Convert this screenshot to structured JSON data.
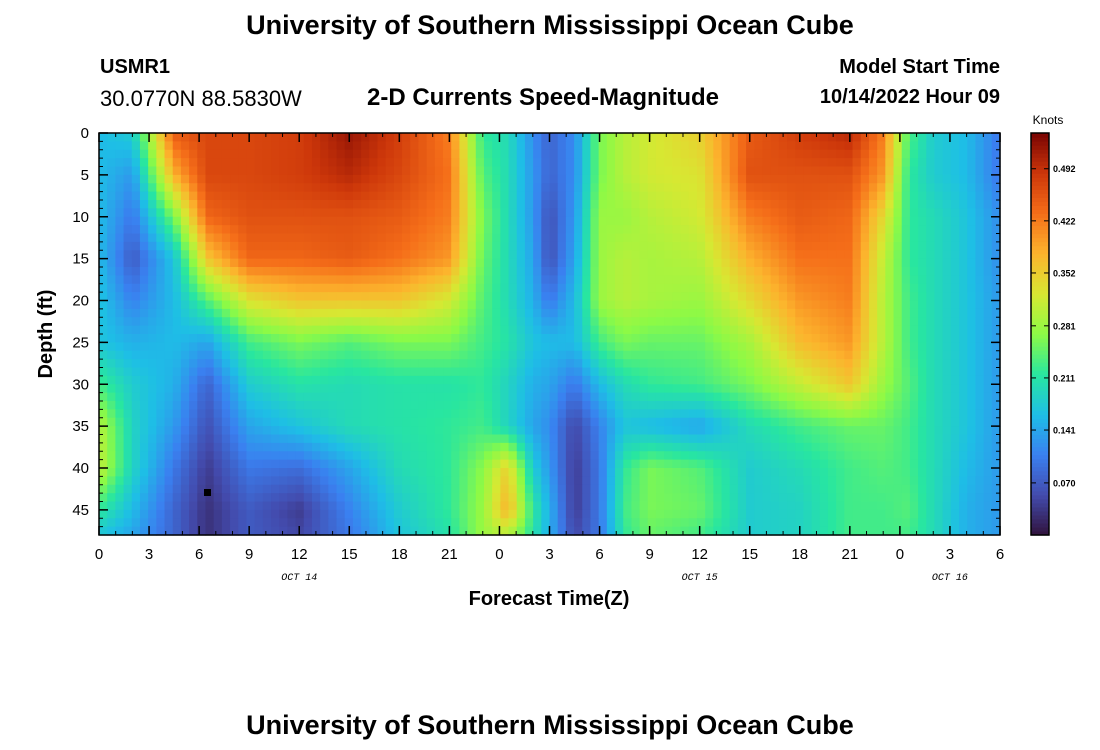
{
  "header": {
    "title": "University of Southern Mississippi Ocean Cube",
    "station": "USMR1",
    "coords": "30.0770N  88.5830W",
    "plot_title": "2-D Currents Speed-Magnitude",
    "model_start_label": "Model Start Time",
    "model_start_value": "10/14/2022 Hour 09"
  },
  "footer": {
    "title": "University of Southern Mississippi Ocean Cube"
  },
  "chart_data": {
    "type": "heatmap",
    "title": "2-D Currents Speed-Magnitude",
    "xlabel": "Forecast Time(Z)",
    "ylabel": "Depth (ft)",
    "xlim": [
      0,
      54
    ],
    "ylim": [
      48,
      0
    ],
    "x_tick_values": [
      0,
      3,
      6,
      9,
      12,
      15,
      18,
      21,
      24,
      27,
      30,
      33,
      36,
      39,
      42,
      45,
      48,
      51,
      54
    ],
    "x_tick_labels": [
      "0",
      "3",
      "6",
      "9",
      "12",
      "15",
      "18",
      "21",
      "0",
      "3",
      "6",
      "9",
      "12",
      "15",
      "18",
      "21",
      "0",
      "3",
      "6"
    ],
    "y_tick_values": [
      0,
      5,
      10,
      15,
      20,
      25,
      30,
      35,
      40,
      45
    ],
    "y_tick_labels": [
      "0",
      "5",
      "10",
      "15",
      "20",
      "25",
      "30",
      "35",
      "40",
      "45"
    ],
    "date_labels": [
      {
        "text": "OCT 14",
        "x": 12
      },
      {
        "text": "OCT 15",
        "x": 36
      },
      {
        "text": "OCT 16",
        "x": 51
      }
    ],
    "colorbar": {
      "label": "Knots",
      "min": 0,
      "max": 0.54,
      "tick_values": [
        0.07,
        0.141,
        0.211,
        0.281,
        0.352,
        0.422,
        0.492
      ],
      "tick_labels": [
        "0.070",
        "0.141",
        "0.211",
        "0.281",
        "0.352",
        "0.422",
        "0.492"
      ]
    },
    "time_axis_hours": [
      0,
      2,
      4.5,
      6.5,
      9,
      12,
      15,
      18,
      21,
      23,
      24.5,
      26,
      27,
      28.5,
      30,
      31.5,
      33,
      36,
      39,
      42,
      45,
      47,
      48.5,
      50,
      52,
      54
    ],
    "depth_axis_ft": [
      0,
      5,
      10,
      15,
      20,
      25,
      30,
      35,
      40,
      45,
      48
    ],
    "speed_knots": [
      [
        0.16,
        0.18,
        0.45,
        0.47,
        0.47,
        0.48,
        0.52,
        0.48,
        0.42,
        0.22,
        0.2,
        0.12,
        0.08,
        0.12,
        0.26,
        0.3,
        0.32,
        0.35,
        0.45,
        0.48,
        0.5,
        0.42,
        0.24,
        0.18,
        0.16,
        0.1
      ],
      [
        0.16,
        0.13,
        0.38,
        0.47,
        0.47,
        0.48,
        0.5,
        0.47,
        0.43,
        0.24,
        0.2,
        0.13,
        0.08,
        0.12,
        0.26,
        0.3,
        0.32,
        0.33,
        0.46,
        0.46,
        0.46,
        0.4,
        0.22,
        0.18,
        0.16,
        0.1
      ],
      [
        0.16,
        0.1,
        0.26,
        0.44,
        0.46,
        0.46,
        0.46,
        0.45,
        0.42,
        0.26,
        0.2,
        0.13,
        0.06,
        0.13,
        0.28,
        0.28,
        0.3,
        0.32,
        0.42,
        0.45,
        0.44,
        0.34,
        0.22,
        0.2,
        0.17,
        0.12
      ],
      [
        0.16,
        0.07,
        0.17,
        0.36,
        0.44,
        0.44,
        0.45,
        0.43,
        0.4,
        0.25,
        0.2,
        0.14,
        0.06,
        0.14,
        0.28,
        0.3,
        0.29,
        0.3,
        0.38,
        0.43,
        0.43,
        0.31,
        0.22,
        0.2,
        0.17,
        0.12
      ],
      [
        0.17,
        0.11,
        0.16,
        0.24,
        0.33,
        0.36,
        0.36,
        0.36,
        0.32,
        0.24,
        0.2,
        0.15,
        0.1,
        0.16,
        0.28,
        0.3,
        0.29,
        0.28,
        0.34,
        0.4,
        0.42,
        0.3,
        0.23,
        0.2,
        0.17,
        0.13
      ],
      [
        0.17,
        0.15,
        0.16,
        0.14,
        0.23,
        0.26,
        0.24,
        0.26,
        0.26,
        0.23,
        0.21,
        0.17,
        0.16,
        0.16,
        0.23,
        0.26,
        0.25,
        0.25,
        0.29,
        0.37,
        0.4,
        0.3,
        0.23,
        0.2,
        0.17,
        0.13
      ],
      [
        0.23,
        0.18,
        0.15,
        0.08,
        0.18,
        0.21,
        0.2,
        0.21,
        0.21,
        0.22,
        0.19,
        0.15,
        0.14,
        0.1,
        0.16,
        0.2,
        0.22,
        0.23,
        0.26,
        0.31,
        0.36,
        0.28,
        0.24,
        0.2,
        0.17,
        0.13
      ],
      [
        0.3,
        0.19,
        0.13,
        0.06,
        0.14,
        0.17,
        0.2,
        0.21,
        0.22,
        0.23,
        0.19,
        0.14,
        0.12,
        0.05,
        0.11,
        0.17,
        0.16,
        0.14,
        0.2,
        0.23,
        0.25,
        0.25,
        0.23,
        0.2,
        0.17,
        0.13
      ],
      [
        0.31,
        0.19,
        0.1,
        0.04,
        0.1,
        0.09,
        0.14,
        0.2,
        0.22,
        0.27,
        0.35,
        0.18,
        0.13,
        0.04,
        0.1,
        0.22,
        0.26,
        0.24,
        0.18,
        0.2,
        0.23,
        0.24,
        0.23,
        0.2,
        0.16,
        0.13
      ],
      [
        0.22,
        0.16,
        0.08,
        0.03,
        0.07,
        0.04,
        0.11,
        0.18,
        0.22,
        0.28,
        0.38,
        0.22,
        0.15,
        0.04,
        0.1,
        0.23,
        0.26,
        0.25,
        0.18,
        0.19,
        0.23,
        0.23,
        0.24,
        0.2,
        0.15,
        0.13
      ],
      [
        0.17,
        0.14,
        0.08,
        0.03,
        0.07,
        0.05,
        0.1,
        0.17,
        0.21,
        0.28,
        0.3,
        0.21,
        0.15,
        0.05,
        0.1,
        0.22,
        0.25,
        0.23,
        0.18,
        0.19,
        0.23,
        0.23,
        0.23,
        0.2,
        0.15,
        0.13
      ]
    ]
  }
}
